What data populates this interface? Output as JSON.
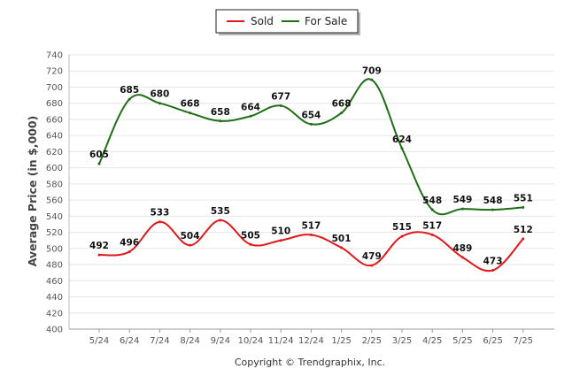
{
  "chart_data": {
    "type": "line",
    "title": "",
    "xlabel": "",
    "ylabel": "Average Price (in $,000)",
    "categories": [
      "5/24",
      "6/24",
      "7/24",
      "8/24",
      "9/24",
      "10/24",
      "11/24",
      "12/24",
      "1/25",
      "2/25",
      "3/25",
      "4/25",
      "5/25",
      "6/25",
      "7/25"
    ],
    "ylim": [
      400,
      740
    ],
    "yticks": [
      400,
      420,
      440,
      460,
      480,
      500,
      520,
      540,
      560,
      580,
      600,
      620,
      640,
      660,
      680,
      700,
      720,
      740
    ],
    "grid": true,
    "legend_position": "top-center",
    "series": [
      {
        "name": "Sold",
        "color": "#e0191d",
        "values": [
          492,
          496,
          533,
          504,
          535,
          505,
          510,
          517,
          501,
          479,
          515,
          517,
          489,
          473,
          512
        ]
      },
      {
        "name": "For Sale",
        "color": "#1f6e17",
        "values": [
          605,
          685,
          680,
          668,
          658,
          664,
          677,
          654,
          668,
          709,
          624,
          548,
          549,
          548,
          551
        ]
      }
    ],
    "annotations": [
      "Copyright © Trendgraphix, Inc."
    ]
  }
}
